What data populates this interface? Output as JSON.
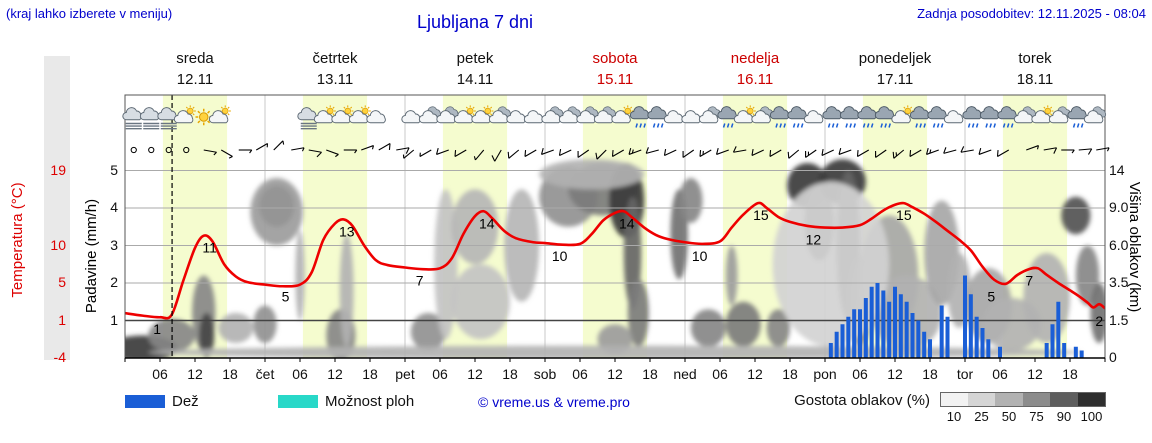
{
  "header": {
    "hint": "(kraj lahko izberete v meniju)",
    "title": "Ljubljana 7 dni",
    "updated": "Zadnja posodobitev: 12.11.2025 - 08:04"
  },
  "days": [
    {
      "name": "sreda",
      "date": "12.11",
      "abbr": "",
      "weekend": false
    },
    {
      "name": "četrtek",
      "date": "13.11",
      "abbr": "čet",
      "weekend": false
    },
    {
      "name": "petek",
      "date": "14.11",
      "abbr": "pet",
      "weekend": false
    },
    {
      "name": "sobota",
      "date": "15.11",
      "abbr": "sob",
      "weekend": true
    },
    {
      "name": "nedelja",
      "date": "16.11",
      "abbr": "ned",
      "weekend": true
    },
    {
      "name": "ponedeljek",
      "date": "17.11",
      "abbr": "pon",
      "weekend": false
    },
    {
      "name": "torek",
      "date": "18.11",
      "abbr": "tor",
      "weekend": false
    }
  ],
  "axes": {
    "temp_label": "Temperatura (°C)",
    "temp_ticks": [
      {
        "v": "19",
        "u": 5
      },
      {
        "v": "10",
        "u": 3
      },
      {
        "v": "5",
        "u": 2
      },
      {
        "v": "1",
        "u": 1
      },
      {
        "v": "-4",
        "u": 0
      }
    ],
    "precip_label": "Padavine (mm/h)",
    "precip_ticks": [
      {
        "v": "5",
        "u": 5
      },
      {
        "v": "4",
        "u": 4
      },
      {
        "v": "3",
        "u": 3
      },
      {
        "v": "2",
        "u": 2
      },
      {
        "v": "1",
        "u": 1
      }
    ],
    "cloud_label": "Višina oblakov (km)",
    "cloud_ticks": [
      {
        "v": "14",
        "u": 5
      },
      {
        "v": "9.0",
        "u": 4
      },
      {
        "v": "6.0",
        "u": 3
      },
      {
        "v": "3.5",
        "u": 2
      },
      {
        "v": "1.5",
        "u": 1
      },
      {
        "v": "0",
        "u": 0
      }
    ],
    "hour_labels": [
      "06",
      "12",
      "18"
    ]
  },
  "legend": {
    "rain_label": "Dež",
    "rain_color": "#1a5ed6",
    "showers_label": "Možnost ploh",
    "showers_color": "#28d8c8",
    "copyright": "© vreme.us & vreme.pro",
    "cloud_density_label": "Gostota oblakov (%)",
    "cloud_scale": [
      {
        "pct": "10",
        "color": "#f2f2f2"
      },
      {
        "pct": "25",
        "color": "#d5d5d5"
      },
      {
        "pct": "50",
        "color": "#b2b2b2"
      },
      {
        "pct": "75",
        "color": "#8c8c8c"
      },
      {
        "pct": "90",
        "color": "#5e5e5e"
      },
      {
        "pct": "100",
        "color": "#2e2e2e"
      }
    ]
  },
  "colors": {
    "blue_text": "#0000cc",
    "red_label": "#dd0000",
    "daylight_band": "#f5fccf",
    "temp_curve": "#ee0000"
  },
  "chart_data": {
    "type": "line",
    "title": "Ljubljana 7 dni",
    "xlabel": "",
    "ylabel_left": "Padavine (mm/h)",
    "ylabel_left2": "Temperatura (°C)",
    "ylabel_right": "Višina oblakov (km)",
    "num_days": 7,
    "hours_per_day": 24,
    "now_hour": 8.07,
    "daylight": [
      6.5,
      17.5
    ],
    "ylim_precip": [
      0,
      5.3
    ],
    "temp_axis": {
      "min": -4,
      "max": 19
    },
    "temperature": {
      "series": [
        [
          0,
          1.5
        ],
        [
          3,
          1.2
        ],
        [
          6,
          1.0
        ],
        [
          8,
          1.3
        ],
        [
          10,
          5.5
        ],
        [
          12,
          9.5
        ],
        [
          13.5,
          11
        ],
        [
          15,
          10.3
        ],
        [
          17,
          7.5
        ],
        [
          19,
          6
        ],
        [
          21,
          5.3
        ],
        [
          24,
          5
        ],
        [
          27,
          4.8
        ],
        [
          30,
          5
        ],
        [
          32,
          6.5
        ],
        [
          34,
          10.5
        ],
        [
          36,
          12.5
        ],
        [
          37.5,
          13
        ],
        [
          39,
          12.2
        ],
        [
          41,
          9.8
        ],
        [
          43,
          8
        ],
        [
          45,
          7.4
        ],
        [
          48,
          7.1
        ],
        [
          51,
          6.9
        ],
        [
          54,
          7
        ],
        [
          56,
          8.2
        ],
        [
          58,
          11.2
        ],
        [
          60,
          13.4
        ],
        [
          61.5,
          14
        ],
        [
          63,
          13.1
        ],
        [
          65,
          11.6
        ],
        [
          67,
          10.7
        ],
        [
          70,
          10.2
        ],
        [
          72,
          10.1
        ],
        [
          75,
          9.9
        ],
        [
          78,
          10
        ],
        [
          80,
          11.2
        ],
        [
          82,
          12.9
        ],
        [
          84,
          13.8
        ],
        [
          85.5,
          14
        ],
        [
          87,
          13.2
        ],
        [
          89,
          12
        ],
        [
          91,
          11.1
        ],
        [
          93,
          10.6
        ],
        [
          96,
          10.2
        ],
        [
          99,
          10
        ],
        [
          102,
          10.3
        ],
        [
          104,
          12
        ],
        [
          106,
          13.6
        ],
        [
          108.5,
          15
        ],
        [
          110,
          14.4
        ],
        [
          112,
          13.3
        ],
        [
          114,
          12.7
        ],
        [
          117,
          12.2
        ],
        [
          120,
          12
        ],
        [
          123,
          12
        ],
        [
          126,
          12.3
        ],
        [
          128,
          13.1
        ],
        [
          130,
          14.1
        ],
        [
          132,
          14.8
        ],
        [
          133.5,
          15
        ],
        [
          135,
          14.5
        ],
        [
          137,
          13.7
        ],
        [
          139,
          12.7
        ],
        [
          141,
          11.6
        ],
        [
          143,
          10.5
        ],
        [
          145,
          9.2
        ],
        [
          147,
          7.2
        ],
        [
          149,
          5.6
        ],
        [
          151,
          5.1
        ],
        [
          153,
          6.2
        ],
        [
          155,
          6.9
        ],
        [
          156.5,
          7
        ],
        [
          158,
          6.2
        ],
        [
          160,
          5.2
        ],
        [
          162,
          4.3
        ],
        [
          163.5,
          3.6
        ],
        [
          165,
          2.8
        ],
        [
          166,
          2.2
        ],
        [
          167,
          2.6
        ],
        [
          168,
          2.1
        ]
      ],
      "labels": [
        [
          5,
          1
        ],
        [
          14,
          11
        ],
        [
          27,
          5
        ],
        [
          37.5,
          13
        ],
        [
          50,
          7
        ],
        [
          61.5,
          14
        ],
        [
          74,
          10
        ],
        [
          85.5,
          14
        ],
        [
          98,
          10
        ],
        [
          108.5,
          15
        ],
        [
          117.5,
          12
        ],
        [
          133,
          15
        ],
        [
          148,
          5
        ],
        [
          154.5,
          7
        ],
        [
          166.5,
          2
        ]
      ]
    },
    "precip_mmh": [
      [
        121,
        0.4
      ],
      [
        122,
        0.7
      ],
      [
        123,
        0.9
      ],
      [
        124,
        1.1
      ],
      [
        125,
        1.3
      ],
      [
        126,
        1.3
      ],
      [
        127,
        1.6
      ],
      [
        128,
        1.9
      ],
      [
        129,
        2.0
      ],
      [
        130,
        1.8
      ],
      [
        131,
        1.5
      ],
      [
        132,
        1.9
      ],
      [
        133,
        1.7
      ],
      [
        134,
        1.5
      ],
      [
        135,
        1.2
      ],
      [
        136,
        1.0
      ],
      [
        137,
        0.7
      ],
      [
        138,
        0.5
      ],
      [
        140,
        1.4
      ],
      [
        141,
        1.1
      ],
      [
        144,
        2.2
      ],
      [
        145,
        1.7
      ],
      [
        146,
        1.1
      ],
      [
        147,
        0.8
      ],
      [
        148,
        0.5
      ],
      [
        150,
        0.3
      ],
      [
        158,
        0.4
      ],
      [
        159,
        0.9
      ],
      [
        160,
        1.5
      ],
      [
        161,
        0.4
      ],
      [
        163,
        0.3
      ],
      [
        164,
        0.2
      ]
    ],
    "clouds": [
      [
        3,
        0.25,
        6,
        0.35,
        0.85
      ],
      [
        8,
        0.6,
        4,
        0.45,
        0.5
      ],
      [
        13.5,
        1.2,
        2,
        1.0,
        0.5
      ],
      [
        14,
        0.6,
        1.3,
        0.6,
        0.8
      ],
      [
        19,
        0.8,
        3,
        0.4,
        0.3
      ],
      [
        26,
        4.05,
        3,
        0.55,
        0.85
      ],
      [
        26,
        3.9,
        4.5,
        0.9,
        0.4
      ],
      [
        24,
        0.9,
        2,
        0.5,
        0.45
      ],
      [
        30,
        2.2,
        0.8,
        1.2,
        0.3
      ],
      [
        37,
        0.6,
        2.5,
        0.7,
        0.5
      ],
      [
        38,
        1.8,
        1.2,
        1.5,
        0.3
      ],
      [
        52,
        0.7,
        3,
        0.5,
        0.45
      ],
      [
        55,
        2.5,
        2,
        2,
        0.22
      ],
      [
        60,
        3.5,
        4,
        1,
        0.28
      ],
      [
        61,
        1.5,
        5,
        1,
        0.22
      ],
      [
        68,
        3,
        3,
        1.5,
        0.28
      ],
      [
        76,
        4.3,
        5,
        0.8,
        0.45
      ],
      [
        82,
        4.5,
        6,
        0.7,
        0.55
      ],
      [
        86,
        4.2,
        3,
        1.0,
        0.85
      ],
      [
        87,
        2.8,
        1.5,
        1.5,
        0.65
      ],
      [
        88,
        1.2,
        1.8,
        0.9,
        0.55
      ],
      [
        84,
        0.5,
        3,
        0.4,
        0.4
      ],
      [
        95,
        3.3,
        1.5,
        1.2,
        0.6
      ],
      [
        97,
        4.2,
        2,
        0.6,
        0.5
      ],
      [
        100,
        0.8,
        3,
        0.5,
        0.5
      ],
      [
        106,
        0.9,
        3,
        0.6,
        0.55
      ],
      [
        104,
        2.2,
        1,
        0.8,
        0.4
      ],
      [
        112,
        0.8,
        2,
        0.5,
        0.5
      ],
      [
        117,
        4.6,
        3.5,
        0.6,
        0.85
      ],
      [
        119,
        3.6,
        2.5,
        1.0,
        0.6
      ],
      [
        123,
        4.7,
        4,
        0.6,
        0.85
      ],
      [
        124,
        3.0,
        2,
        2.0,
        0.65
      ],
      [
        126,
        1.5,
        2,
        1.2,
        0.5
      ],
      [
        131,
        2.2,
        5,
        1.6,
        0.35
      ],
      [
        134,
        1.2,
        6,
        1.0,
        0.3
      ],
      [
        140,
        2.8,
        3,
        1.4,
        0.35
      ],
      [
        143,
        1.8,
        2,
        1,
        0.3
      ],
      [
        148,
        1.4,
        4,
        1.0,
        0.35
      ],
      [
        152,
        0.9,
        5,
        0.7,
        0.3
      ],
      [
        158,
        1.6,
        4,
        1.2,
        0.3
      ],
      [
        163,
        3.8,
        2.5,
        0.5,
        0.75
      ],
      [
        165,
        2.2,
        2,
        0.8,
        0.5
      ],
      [
        167,
        1.2,
        1.5,
        0.8,
        0.6
      ],
      [
        80,
        4.9,
        9,
        0.4,
        0.3
      ],
      [
        121,
        2.5,
        10,
        2.2,
        0.15
      ],
      [
        84,
        0.15,
        80,
        0.18,
        0.3
      ]
    ],
    "wind_start_h": 1.5,
    "wind_step_h": 3,
    "wind": [
      null,
      null,
      null,
      null,
      [
        100,
        5
      ],
      [
        120,
        5
      ],
      [
        90,
        8
      ],
      [
        60,
        5
      ],
      [
        45,
        5
      ],
      [
        80,
        8
      ],
      [
        100,
        10
      ],
      [
        110,
        8
      ],
      [
        90,
        5
      ],
      [
        70,
        8
      ],
      [
        60,
        10
      ],
      [
        80,
        10
      ],
      [
        230,
        5
      ],
      [
        240,
        8
      ],
      [
        250,
        10
      ],
      [
        240,
        10
      ],
      [
        220,
        8
      ],
      [
        210,
        10
      ],
      [
        230,
        12
      ],
      [
        240,
        10
      ],
      [
        250,
        12
      ],
      [
        245,
        10
      ],
      [
        235,
        12
      ],
      [
        225,
        10
      ],
      [
        240,
        12
      ],
      [
        250,
        15
      ],
      [
        255,
        12
      ],
      [
        245,
        10
      ],
      [
        235,
        12
      ],
      [
        240,
        15
      ],
      [
        250,
        12
      ],
      [
        260,
        10
      ],
      [
        245,
        12
      ],
      [
        240,
        10
      ],
      [
        230,
        12
      ],
      [
        235,
        15
      ],
      [
        245,
        12
      ],
      [
        250,
        10
      ],
      [
        240,
        12
      ],
      [
        235,
        10
      ],
      [
        230,
        15
      ],
      [
        240,
        12
      ],
      [
        250,
        15
      ],
      [
        255,
        12
      ],
      [
        260,
        10
      ],
      [
        250,
        12
      ],
      [
        240,
        10
      ],
      [
        70,
        8
      ],
      [
        80,
        10
      ],
      [
        90,
        8
      ],
      [
        85,
        10
      ],
      [
        80,
        8
      ]
    ],
    "icon_start_h": 1.5,
    "icon_step_h": 3,
    "icons": [
      "fog",
      "fog",
      "fog",
      "sun-cloud",
      "sun",
      "sun-cloud",
      "moon",
      "moon",
      "moon",
      "moon",
      "fog",
      "sun-cloud",
      "sun-cloud",
      "sun-cloud",
      "moon-cloud",
      "moon",
      "moon-cloud",
      "cloud",
      "cloud",
      "sun-cloud",
      "sun-cloud",
      "cloud",
      "moon-cloud",
      "moon-cloud",
      "cloud",
      "cloud",
      "cloud",
      "cloud",
      "sun-cloud",
      "rain",
      "rain",
      "moon-cloud",
      "moon-cloud",
      "cloud",
      "rain",
      "sun-cloud",
      "cloud",
      "rain",
      "rain",
      "moon-cloud",
      "rain",
      "rain",
      "rain",
      "rain",
      "sun-cloud",
      "rain",
      "rain",
      "moon-cloud",
      "rain",
      "rain",
      "rain",
      "cloud",
      "sun-cloud",
      "cloud",
      "rain",
      "cloud"
    ]
  }
}
